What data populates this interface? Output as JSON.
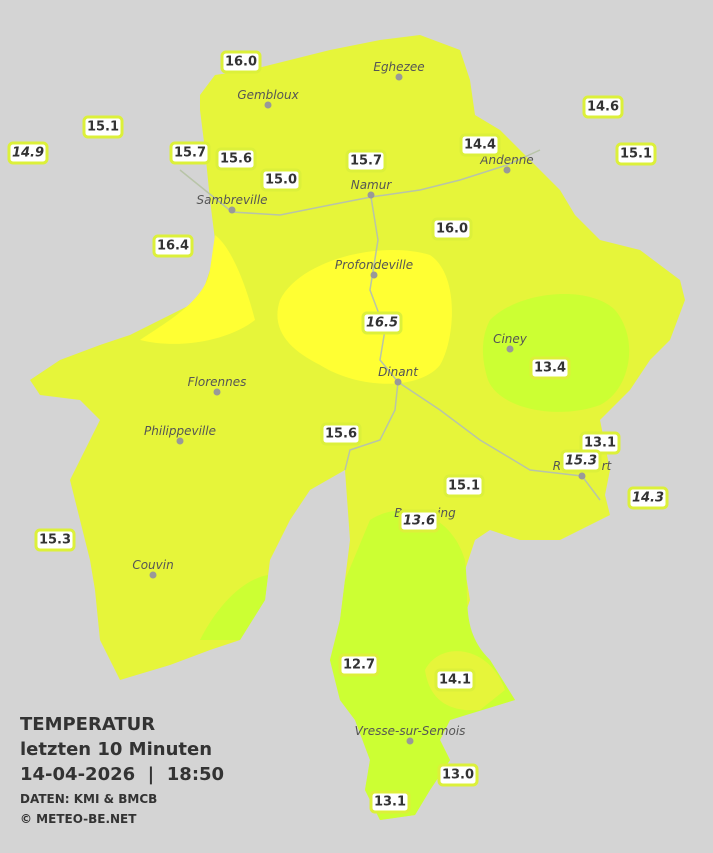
{
  "stations": [
    {
      "text": "16.0"
    },
    {
      "text": "15.1"
    },
    {
      "text": "14.9",
      "italic": true
    },
    {
      "text": "15.7"
    },
    {
      "text": "15.6"
    },
    {
      "text": "15.0"
    },
    {
      "text": "15.7"
    },
    {
      "text": "14.4"
    },
    {
      "text": "14.6"
    },
    {
      "text": "15.1"
    },
    {
      "text": "16.4"
    },
    {
      "text": "16.0"
    },
    {
      "text": "16.5",
      "italic": true
    },
    {
      "text": "13.4"
    },
    {
      "text": "15.6"
    },
    {
      "text": "13.1"
    },
    {
      "text": "15.3",
      "italic": true
    },
    {
      "text": "14.3",
      "italic": true
    },
    {
      "text": "15.1"
    },
    {
      "text": "13.6",
      "italic": true
    },
    {
      "text": "15.3"
    },
    {
      "text": "12.7"
    },
    {
      "text": "14.1"
    },
    {
      "text": "13.0"
    },
    {
      "text": "13.1"
    }
  ],
  "cities": [
    "Eghezee",
    "Gembloux",
    "Andenne",
    "Namur",
    "Sambreville",
    "Profondeville",
    "Ciney",
    "Dinant",
    "Florennes",
    "Philippeville",
    "Rochefort",
    "Beauraing",
    "Couvin",
    "Vresse-sur-Semois"
  ],
  "legend": {
    "title": "TEMPERATUR",
    "subtitle": "letzten 10 Minuten",
    "timestamp": "14-04-2026  |  18:50",
    "source": "DATEN: KMI & BMCB",
    "copyright": "© METEO-BE.NET"
  }
}
